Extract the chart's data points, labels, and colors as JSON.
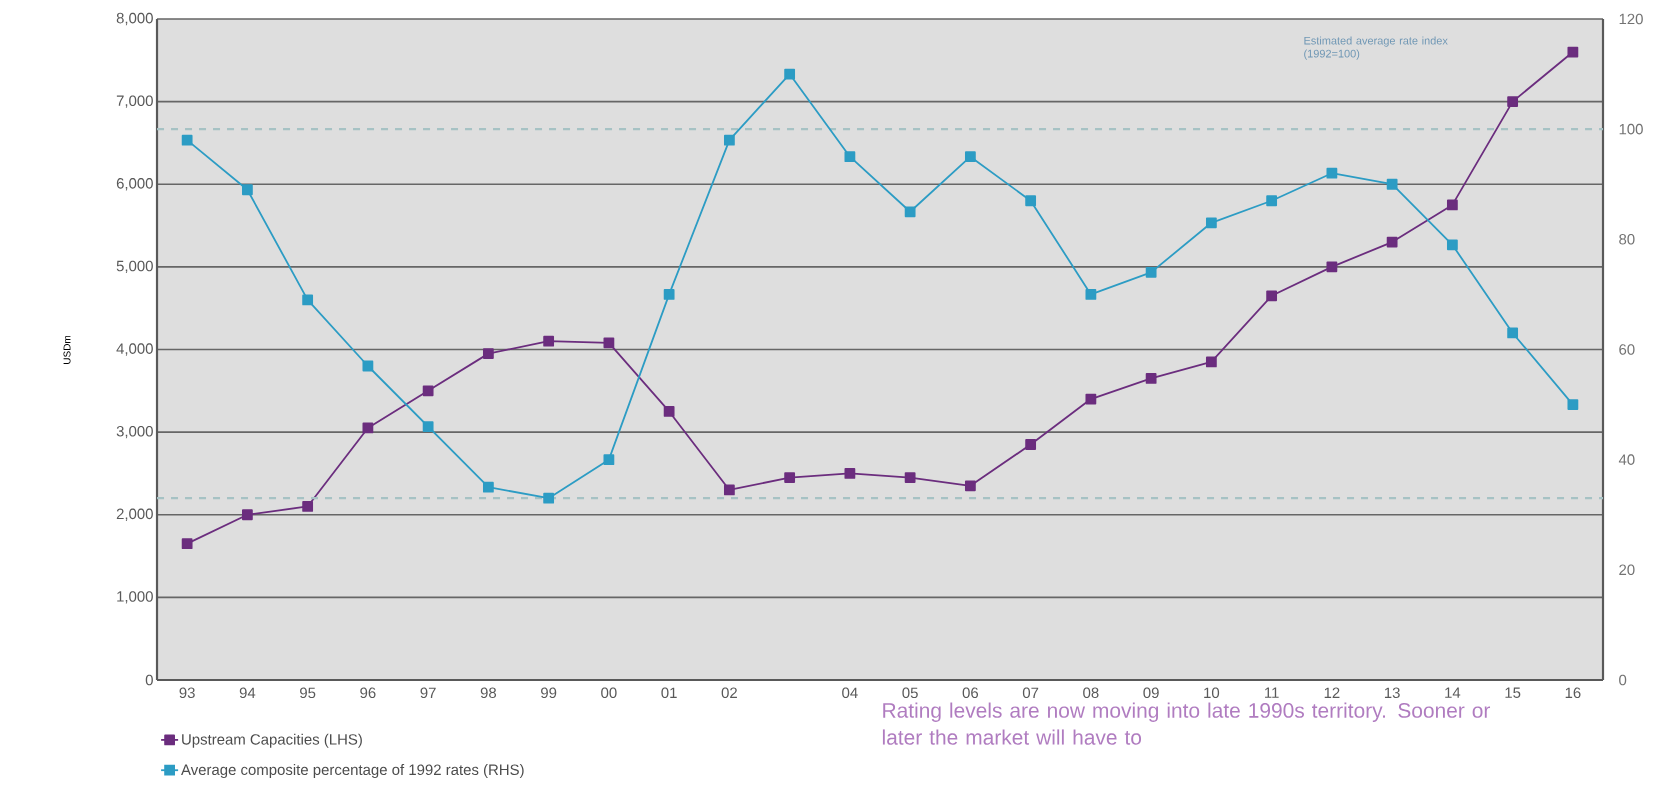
{
  "chart_data": {
    "type": "line",
    "ylabel": "USDm",
    "categories": [
      "93",
      "94",
      "95",
      "96",
      "97",
      "98",
      "99",
      "00",
      "01",
      "02",
      null,
      "04",
      "05",
      "06",
      "07",
      "08",
      "09",
      "10",
      "11",
      "12",
      "13",
      "14",
      "15",
      "16"
    ],
    "ylim": [
      0,
      8000
    ],
    "yticks": [
      {
        "value": 0,
        "label": "0"
      },
      {
        "value": 1000,
        "label": "1,000"
      },
      {
        "value": 2000,
        "label": "2,000"
      },
      {
        "value": 3000,
        "label": "3,000"
      },
      {
        "value": 4000,
        "label": "4,000"
      },
      {
        "value": 5000,
        "label": "5,000"
      },
      {
        "value": 6000,
        "label": "6,000"
      },
      {
        "value": 7000,
        "label": "7,000"
      },
      {
        "value": 8000,
        "label": "8,000"
      }
    ],
    "y2lim": [
      0,
      120
    ],
    "y2ticks": [
      0,
      20,
      40,
      60,
      80,
      100,
      120
    ],
    "grid": "y",
    "marker": "square",
    "line_style": "solid",
    "legend": "bottom left",
    "series": [
      {
        "name": "Upstream Capacities (LHS)",
        "color": "#6b2d7e",
        "values": [
          1650,
          2000,
          2100,
          3050,
          3500,
          3950,
          4100,
          4080,
          3250,
          2300,
          2450,
          2500,
          2450,
          2350,
          2850,
          3400,
          3650,
          3850,
          4650,
          5000,
          5300,
          5750,
          7000,
          7600
        ]
      },
      {
        "name": "Average composite percentage of 1992 rates (RHS)",
        "color": "#2c9cc4",
        "axis": "y2",
        "values": [
          98,
          89,
          69,
          57,
          46,
          35,
          33,
          40,
          70,
          98,
          110,
          95,
          85,
          95,
          87,
          70,
          74,
          83,
          87,
          92,
          90,
          79,
          63,
          50
        ]
      }
    ],
    "ref_lines": [
      {
        "axis": "y2",
        "value": 100,
        "color": "#a6c2c4",
        "line_style": "dashed"
      },
      {
        "axis": "y2",
        "value": 33,
        "color": "#a6c2c4",
        "line_style": "dashed"
      }
    ],
    "annotations": [
      "Estimated average rate index (1992=100)",
      "Rating levels are now moving into late 1990s territory. Sooner or later the market will have to"
    ]
  }
}
